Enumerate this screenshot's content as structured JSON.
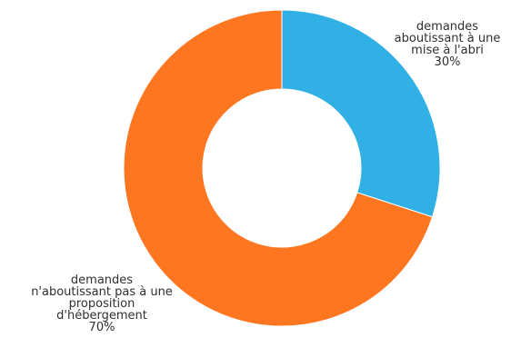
{
  "chart_data": {
    "type": "pie",
    "donut": true,
    "title": "",
    "slices": [
      {
        "label_lines": [
          "demandes",
          "aboutissant à une",
          "mise à l'abri"
        ],
        "value_label": "30%",
        "value": 30,
        "color": "#30b0e4"
      },
      {
        "label_lines": [
          "demandes",
          "n'aboutissant pas à une",
          "proposition",
          "d'hébergement"
        ],
        "value_label": "70%",
        "value": 70,
        "color": "#ff7620"
      }
    ],
    "legend": "none"
  }
}
